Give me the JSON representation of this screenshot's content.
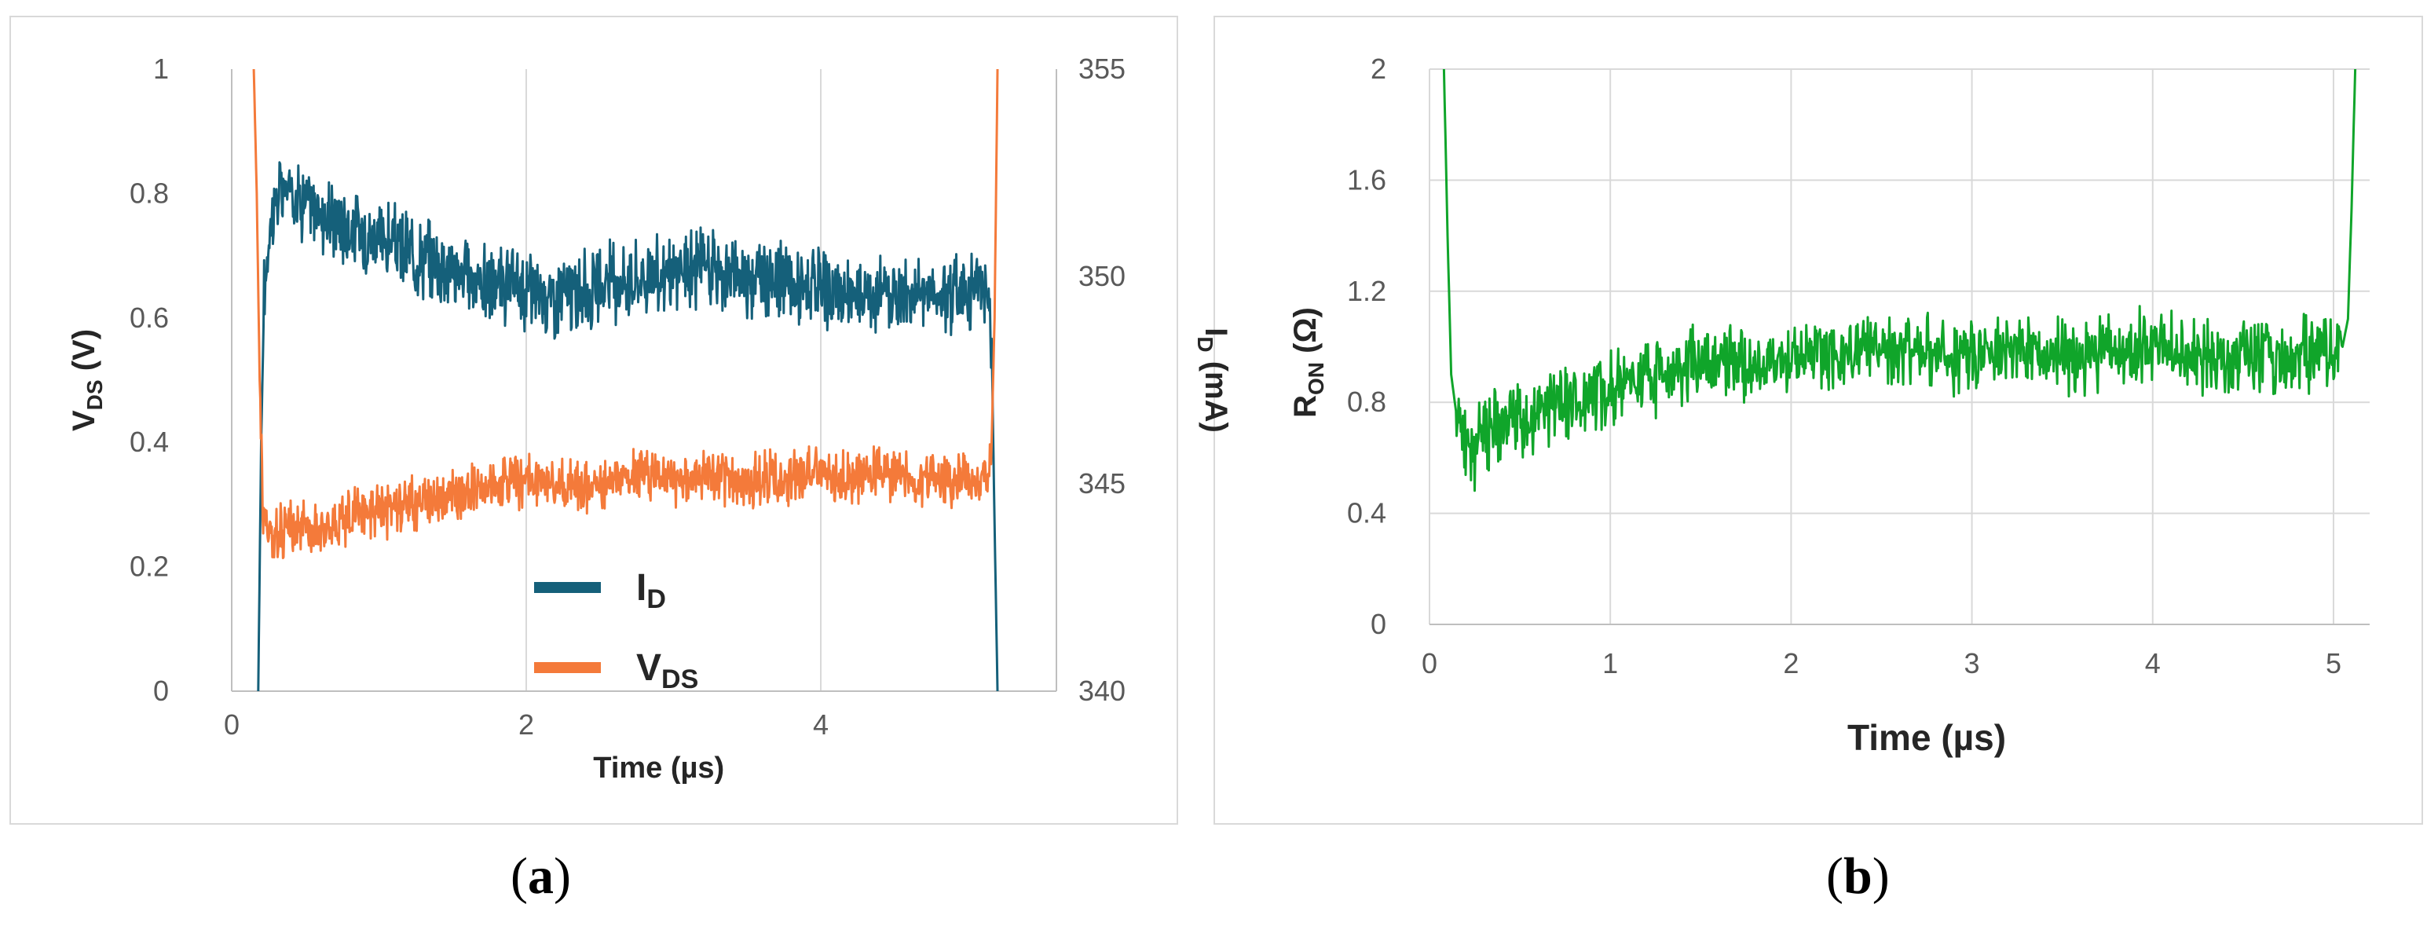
{
  "panels": {
    "a": {
      "caption_open": "(",
      "caption_letter": "a",
      "caption_close": ")"
    },
    "b": {
      "caption_open": "(",
      "caption_letter": "b",
      "caption_close": ")"
    }
  },
  "chart_data": [
    {
      "type": "line",
      "panel": "a",
      "xlabel": "Time (µs)",
      "ylabel_left": {
        "main": "V",
        "sub": "DS",
        "unit": " (V)"
      },
      "ylabel_right": {
        "main": "I",
        "sub": "D",
        "unit": " (mA)"
      },
      "xlim": [
        0,
        5.6
      ],
      "xticks": [
        0,
        2,
        4
      ],
      "ylim_left": [
        0,
        1
      ],
      "yticks_left": [
        0,
        0.2,
        0.4,
        0.6,
        0.8,
        1
      ],
      "ylim_right": [
        340,
        355
      ],
      "yticks_right": [
        340,
        345,
        350,
        355
      ],
      "grid": {
        "x": true,
        "y": false
      },
      "legend_placement": "center",
      "series": [
        {
          "name": {
            "main": "I",
            "sub": "D"
          },
          "axis": "right",
          "color": "#15607a",
          "x": [
            0.18,
            0.2,
            0.22,
            0.26,
            0.3,
            0.35,
            0.4,
            0.5,
            0.6,
            0.8,
            1.0,
            1.2,
            1.4,
            1.6,
            1.8,
            2.0,
            2.2,
            2.4,
            2.6,
            2.8,
            3.0,
            3.2,
            3.4,
            3.6,
            3.8,
            4.0,
            4.2,
            4.4,
            4.6,
            4.8,
            5.0,
            5.1,
            5.14,
            5.16,
            5.18,
            5.2
          ],
          "y": [
            340.0,
            346.0,
            349.5,
            351.3,
            351.9,
            352.0,
            352.1,
            351.8,
            351.5,
            351.2,
            350.9,
            350.6,
            350.3,
            350.0,
            349.7,
            349.7,
            349.5,
            349.6,
            349.9,
            350.0,
            350.0,
            350.3,
            350.0,
            350.0,
            349.8,
            349.6,
            349.5,
            349.6,
            349.6,
            349.6,
            349.7,
            349.7,
            349.4,
            348.5,
            344.0,
            340.0
          ]
        },
        {
          "name": {
            "main": "V",
            "sub": "DS"
          },
          "axis": "left",
          "color": "#f47a3a",
          "x": [
            0.15,
            0.17,
            0.19,
            0.21,
            0.24,
            0.3,
            0.4,
            0.6,
            0.8,
            1.0,
            1.2,
            1.4,
            1.6,
            1.8,
            2.0,
            2.2,
            2.4,
            2.6,
            2.8,
            3.0,
            3.2,
            3.4,
            3.6,
            3.8,
            4.0,
            4.2,
            4.4,
            4.6,
            4.8,
            5.0,
            5.1,
            5.14,
            5.16,
            5.18,
            5.2
          ],
          "y": [
            1.0,
            0.8,
            0.5,
            0.3,
            0.26,
            0.25,
            0.26,
            0.27,
            0.28,
            0.29,
            0.3,
            0.31,
            0.32,
            0.33,
            0.34,
            0.33,
            0.33,
            0.34,
            0.35,
            0.34,
            0.35,
            0.34,
            0.34,
            0.34,
            0.35,
            0.34,
            0.35,
            0.34,
            0.34,
            0.34,
            0.34,
            0.35,
            0.4,
            0.6,
            1.0
          ]
        }
      ]
    },
    {
      "type": "line",
      "panel": "b",
      "xlabel": "Time (µs)",
      "ylabel": {
        "main": "R",
        "sub": "ON",
        "unit": " (Ω)"
      },
      "xlim": [
        0,
        5.2
      ],
      "xticks": [
        0,
        1,
        2,
        3,
        4,
        5
      ],
      "ylim": [
        0,
        2
      ],
      "yticks": [
        0,
        0.4,
        0.8,
        1.2,
        1.6,
        2
      ],
      "grid": {
        "x": true,
        "y": true
      },
      "series": [
        {
          "color": "#10a52a",
          "x": [
            0.08,
            0.1,
            0.12,
            0.15,
            0.2,
            0.25,
            0.3,
            0.4,
            0.5,
            0.6,
            0.8,
            1.0,
            1.2,
            1.4,
            1.6,
            1.8,
            2.0,
            2.2,
            2.4,
            2.6,
            2.8,
            3.0,
            3.2,
            3.4,
            3.6,
            3.8,
            4.0,
            4.2,
            4.4,
            4.6,
            4.8,
            5.0,
            5.05,
            5.08,
            5.1,
            5.12
          ],
          "y": [
            2.0,
            1.4,
            0.9,
            0.75,
            0.68,
            0.62,
            0.7,
            0.72,
            0.74,
            0.76,
            0.8,
            0.85,
            0.88,
            0.92,
            0.96,
            0.93,
            0.96,
            0.98,
            0.99,
            0.97,
            0.98,
            0.97,
            1.0,
            0.96,
            0.97,
            0.96,
            1.02,
            0.97,
            0.96,
            0.98,
            0.97,
            0.98,
            1.0,
            1.1,
            1.5,
            2.0
          ]
        }
      ]
    }
  ]
}
